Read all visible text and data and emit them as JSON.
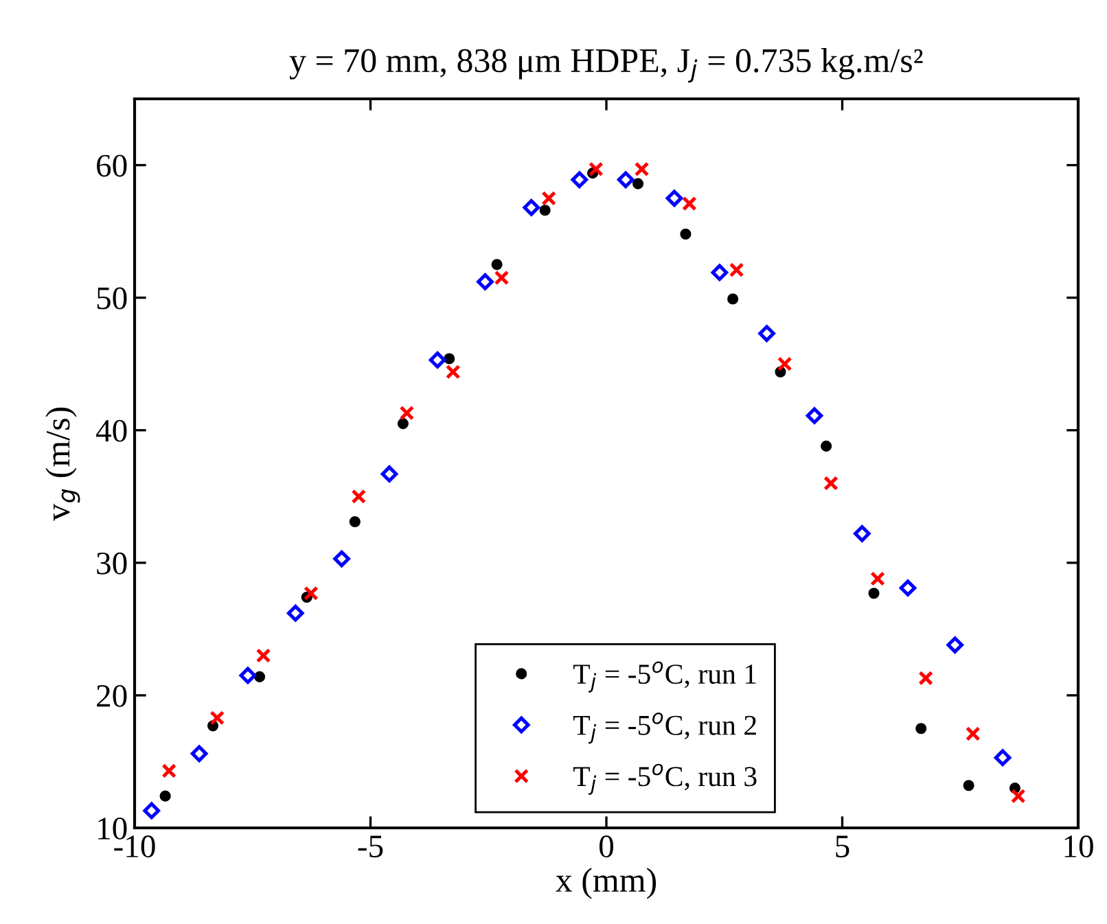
{
  "chart_data": {
    "type": "scatter",
    "title": "y = 70 mm, 838 μm HDPE, J$_{j}$ = 0.735 kg.m/s²",
    "xlabel": "x (mm)",
    "ylabel": "v$_{g}$ (m/s)",
    "xlim": [
      -10,
      10
    ],
    "xticks": [
      -10,
      -5,
      0,
      5,
      10
    ],
    "ylim": [
      10,
      65
    ],
    "yticks": [
      10,
      20,
      30,
      40,
      50,
      60
    ],
    "grid": false,
    "legend": "bottom",
    "series": [
      {
        "name": "T$_{j}$ = -5$^{o}$C, run 1",
        "color": "#000000",
        "marker": "circle",
        "x": [
          -9.35,
          -8.34,
          -7.35,
          -6.35,
          -5.33,
          -4.31,
          -3.33,
          -2.32,
          -1.3,
          -0.29,
          0.67,
          1.68,
          2.68,
          3.69,
          4.66,
          5.67,
          6.67,
          7.68,
          8.66
        ],
        "values": [
          12.4,
          17.7,
          21.4,
          27.4,
          33.1,
          40.5,
          45.4,
          52.5,
          56.6,
          59.4,
          58.6,
          54.8,
          49.9,
          44.4,
          38.8,
          27.7,
          17.5,
          13.2,
          13.0
        ]
      },
      {
        "name": "T$_{j}$ = -5$^{o}$C, run 2",
        "color": "#0000ff",
        "marker": "diamond",
        "x": [
          -9.64,
          -8.63,
          -7.6,
          -6.59,
          -5.61,
          -4.6,
          -3.58,
          -2.57,
          -1.59,
          -0.57,
          0.41,
          1.44,
          2.4,
          3.4,
          4.41,
          5.42,
          6.39,
          7.39,
          8.4
        ],
        "values": [
          11.3,
          15.6,
          21.5,
          26.2,
          30.3,
          36.7,
          45.3,
          51.2,
          56.8,
          58.9,
          58.9,
          57.5,
          51.9,
          47.3,
          41.1,
          32.2,
          28.1,
          23.8,
          15.3
        ]
      },
      {
        "name": "T$_{j}$ = -5$^{o}$C, run 3",
        "color": "#ff0000",
        "marker": "cross",
        "x": [
          -9.27,
          -8.25,
          -7.27,
          -6.26,
          -5.25,
          -4.23,
          -3.25,
          -2.22,
          -1.22,
          -0.22,
          0.75,
          1.76,
          2.76,
          3.78,
          4.76,
          5.75,
          6.77,
          7.77,
          8.73
        ],
        "values": [
          14.3,
          18.3,
          23.0,
          27.7,
          35.0,
          41.3,
          44.4,
          51.5,
          57.5,
          59.7,
          59.7,
          57.1,
          52.1,
          45.0,
          36.0,
          28.8,
          21.3,
          17.1,
          12.4
        ]
      }
    ]
  }
}
